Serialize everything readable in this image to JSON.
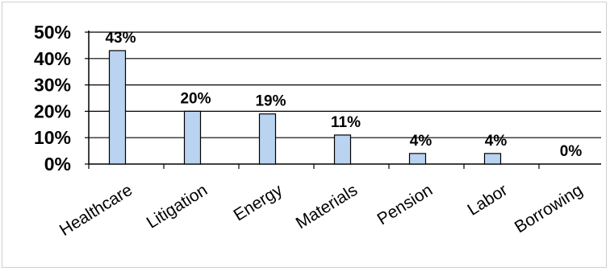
{
  "chart_data": {
    "type": "bar",
    "categories": [
      "Healthcare",
      "Litigation",
      "Energy",
      "Materials",
      "Pension",
      "Labor",
      "Borrowing"
    ],
    "values": [
      43,
      20,
      19,
      11,
      4,
      4,
      0
    ],
    "data_labels": [
      "43%",
      "20%",
      "19%",
      "11%",
      "4%",
      "4%",
      "0%"
    ],
    "yticks": [
      0,
      10,
      20,
      30,
      40,
      50
    ],
    "ytick_labels": [
      "0%",
      "10%",
      "20%",
      "30%",
      "40%",
      "50%"
    ],
    "ylim": [
      0,
      50
    ],
    "grid": true,
    "legend": "none",
    "bar_color": "#b9d3f0",
    "bar_edge_color": "#000000",
    "title": "",
    "xlabel": "",
    "ylabel": ""
  }
}
